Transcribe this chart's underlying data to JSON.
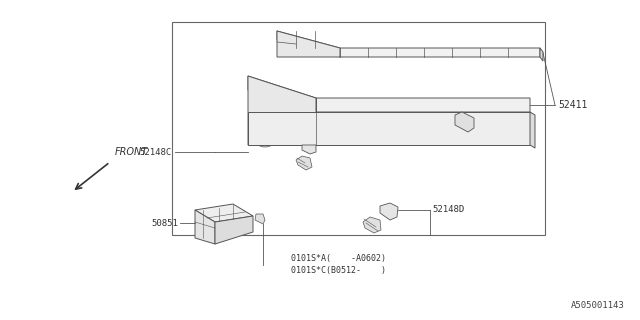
{
  "bg_color": "#ffffff",
  "line_color": "#555555",
  "label_color": "#333333",
  "codes": [
    "0101S*A(    -A0602)",
    "0101S*C(B0512-    )"
  ],
  "diagram_id": "A505001143"
}
